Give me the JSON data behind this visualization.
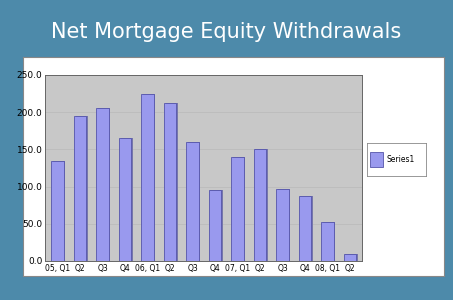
{
  "categories": [
    "05, Q1",
    "Q2",
    "Q3",
    "Q4",
    "06, Q1",
    "Q2",
    "Q3",
    "Q4",
    "07, Q1",
    "Q2",
    "Q3",
    "Q4",
    "08, Q1",
    "Q2"
  ],
  "values": [
    135,
    195,
    205,
    165,
    225,
    213,
    160,
    95,
    140,
    150,
    97,
    87,
    52,
    10
  ],
  "bar_color": "#9999ee",
  "bar_edge_color": "#5555aa",
  "title": "Net Mortgage Equity Withdrawals",
  "title_color": "#ffffff",
  "title_fontsize": 15,
  "background_outer": "#4d8aaa",
  "background_plot": "#c8c8c8",
  "ylim": [
    0,
    250
  ],
  "yticks": [
    0.0,
    50.0,
    100.0,
    150.0,
    200.0,
    250.0
  ],
  "ytick_labels": [
    "0.0",
    "50.0",
    "100.0",
    "150.0",
    "200.0",
    "250.0"
  ],
  "legend_label": "Series1",
  "grid_color": "#bbbbbb",
  "chart_border_color": "#888888"
}
